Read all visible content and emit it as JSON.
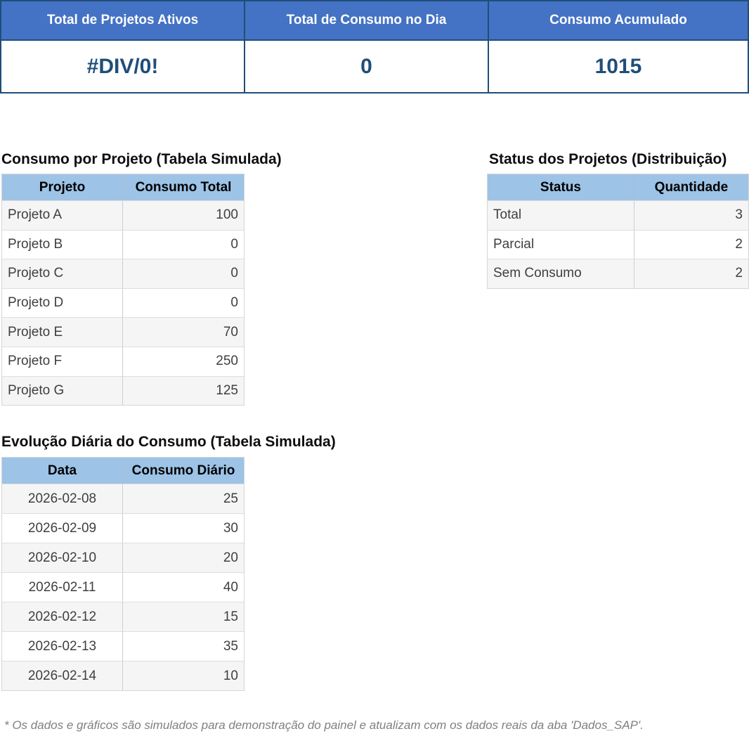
{
  "summary_cards": [
    {
      "label": "Total de Projetos Ativos",
      "value": "#DIV/0!"
    },
    {
      "label": "Total de Consumo no Dia",
      "value": "0"
    },
    {
      "label": "Consumo Acumulado",
      "value": "1015"
    }
  ],
  "project_table": {
    "title": "Consumo por Projeto (Tabela Simulada)",
    "headers": [
      "Projeto",
      "Consumo Total"
    ],
    "rows": [
      [
        "Projeto A",
        "100"
      ],
      [
        "Projeto B",
        "0"
      ],
      [
        "Projeto C",
        "0"
      ],
      [
        "Projeto D",
        "0"
      ],
      [
        "Projeto E",
        "70"
      ],
      [
        "Projeto F",
        "250"
      ],
      [
        "Projeto G",
        "125"
      ]
    ]
  },
  "status_table": {
    "title": "Status dos Projetos (Distribuição)",
    "headers": [
      "Status",
      "Quantidade"
    ],
    "rows": [
      [
        "Total",
        "3"
      ],
      [
        "Parcial",
        "2"
      ],
      [
        "Sem Consumo",
        "2"
      ]
    ]
  },
  "daily_table": {
    "title": "Evolução Diária do Consumo (Tabela Simulada)",
    "headers": [
      "Data",
      "Consumo Diário"
    ],
    "rows": [
      [
        "2026-02-08",
        "25"
      ],
      [
        "2026-02-09",
        "30"
      ],
      [
        "2026-02-10",
        "20"
      ],
      [
        "2026-02-11",
        "40"
      ],
      [
        "2026-02-12",
        "15"
      ],
      [
        "2026-02-13",
        "35"
      ],
      [
        "2026-02-14",
        "10"
      ]
    ]
  },
  "footnote": "* Os dados e gráficos são simulados para demonstração do painel e atualizam com os dados reais da aba 'Dados_SAP'.",
  "colors": {
    "card_header_bg": "#4472C4",
    "card_border": "#1F4E79",
    "card_value_text": "#1F4E79",
    "table_header_bg": "#9DC3E6",
    "row_stripe": "#F5F5F5"
  }
}
